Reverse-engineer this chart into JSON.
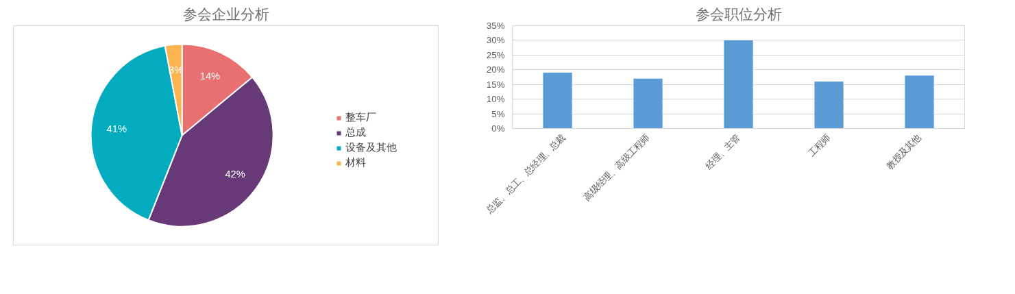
{
  "chart_data": [
    {
      "type": "pie",
      "title": "参会企业分析",
      "categories": [
        "整车厂",
        "总成",
        "设备及其他",
        "材料"
      ],
      "values": [
        14,
        42,
        41,
        3
      ],
      "colors": [
        "#e87070",
        "#673a77",
        "#03abbe",
        "#fbb450"
      ],
      "value_labels": [
        "14%",
        "42%",
        "41%",
        "3%"
      ],
      "legend": "right"
    },
    {
      "type": "bar",
      "title": "参会职位分析",
      "categories": [
        "总监、总工、总经理、总裁",
        "高级经理、高级工程师",
        "经理、主管",
        "工程师",
        "教授及其他"
      ],
      "series": [
        {
          "color": "#5b9bd5",
          "values": [
            19,
            17,
            30,
            16,
            18
          ]
        }
      ],
      "ylim": [
        0,
        35
      ],
      "yticks": [
        {
          "value": 0,
          "label": "0%"
        },
        {
          "value": 5,
          "label": "5%"
        },
        {
          "value": 10,
          "label": "10%"
        },
        {
          "value": 15,
          "label": "15%"
        },
        {
          "value": 20,
          "label": "20%"
        },
        {
          "value": 25,
          "label": "25%"
        },
        {
          "value": 30,
          "label": "30%"
        },
        {
          "value": 35,
          "label": "35%"
        }
      ],
      "grid": "y"
    }
  ]
}
